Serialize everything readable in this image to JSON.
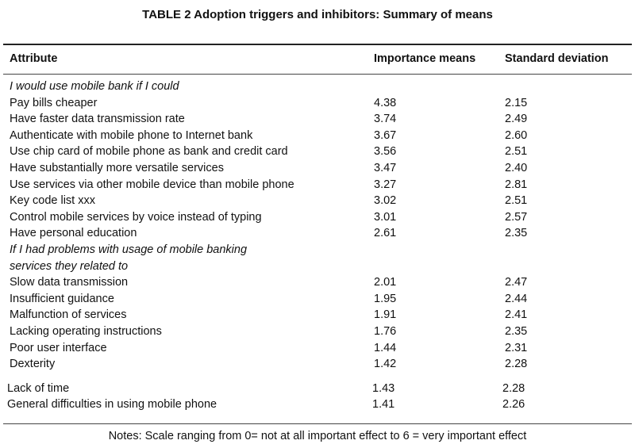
{
  "title": "TABLE 2 Adoption triggers and inhibitors: Summary of means",
  "headers": {
    "attribute": "Attribute",
    "importance": "Importance means",
    "sd": "Standard deviation"
  },
  "rows": [
    {
      "label": "I would use mobile bank if I could",
      "imp": "",
      "sd": "",
      "section": true
    },
    {
      "label": "Pay bills cheaper",
      "imp": "4.38",
      "sd": "2.15"
    },
    {
      "label": "Have faster data transmission rate",
      "imp": "3.74",
      "sd": "2.49"
    },
    {
      "label": "Authenticate with mobile phone to Internet bank",
      "imp": "3.67",
      "sd": "2.60"
    },
    {
      "label": "Use chip card of mobile phone as bank and credit card",
      "imp": "3.56",
      "sd": "2.51"
    },
    {
      "label": "Have substantially more versatile services",
      "imp": "3.47",
      "sd": "2.40"
    },
    {
      "label": "Use services via other mobile device than mobile phone",
      "imp": "3.27",
      "sd": "2.81"
    },
    {
      "label": "Key code list xxx",
      "imp": "3.02",
      "sd": "2.51"
    },
    {
      "label": "Control mobile services by voice instead of typing",
      "imp": "3.01",
      "sd": "2.57"
    },
    {
      "label": "Have personal education",
      "imp": "2.61",
      "sd": "2.35"
    },
    {
      "label": "If I had problems with usage of mobile banking",
      "imp": "",
      "sd": "",
      "section": true
    },
    {
      "label": "services they related to",
      "imp": "",
      "sd": "",
      "section": true
    },
    {
      "label": "Slow data transmission",
      "imp": "2.01",
      "sd": "2.47"
    },
    {
      "label": "Insufficient guidance",
      "imp": "1.95",
      "sd": "2.44"
    },
    {
      "label": "Malfunction of services",
      "imp": "1.91",
      "sd": "2.41"
    },
    {
      "label": "Lacking operating instructions",
      "imp": "1.76",
      "sd": "2.35"
    },
    {
      "label": "Poor user interface",
      "imp": "1.44",
      "sd": "2.31"
    },
    {
      "label": "Dexterity",
      "imp": "1.42",
      "sd": "2.28"
    },
    {
      "label": "Lack of time",
      "imp": "1.43",
      "sd": "2.28",
      "tail": true
    },
    {
      "label": "General difficulties in using mobile phone",
      "imp": "1.41",
      "sd": "2.26",
      "tail": true
    }
  ],
  "notes": "Notes: Scale ranging from 0= not at all important effect to 6 = very important effect"
}
